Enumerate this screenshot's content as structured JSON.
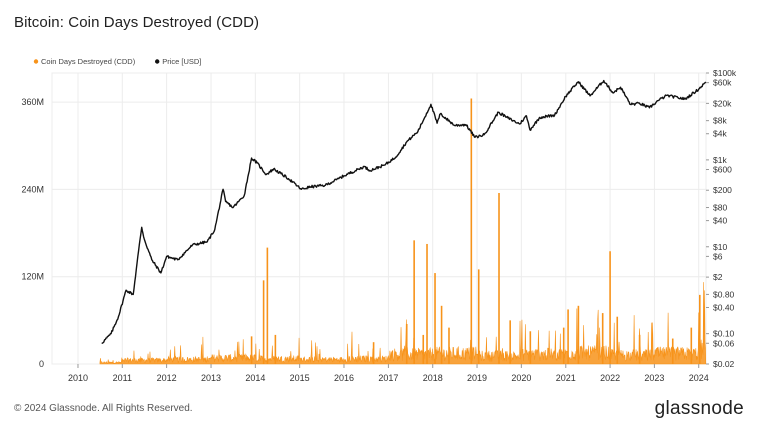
{
  "title": "Bitcoin: Coin Days Destroyed (CDD)",
  "footer": {
    "copyright": "© 2024 Glassnode. All Rights Reserved.",
    "brand": "glassnode"
  },
  "colors": {
    "cdd": "#f7931a",
    "price": "#111111",
    "grid": "#ececec"
  },
  "chart_data": {
    "type": "area",
    "title": "Bitcoin: Coin Days Destroyed (CDD)",
    "legend": {
      "placement": "top-left",
      "items": [
        {
          "label": "Coin Days Destroyed (CDD)",
          "color": "#f7931a",
          "marker": "dot"
        },
        {
          "label": "Price [USD]",
          "color": "#111111",
          "marker": "dot"
        }
      ]
    },
    "x_axis": {
      "type": "time",
      "range": [
        "2009-06-01",
        "2024-03-01"
      ],
      "tick_labels": [
        "2010",
        "2011",
        "2012",
        "2013",
        "2014",
        "2015",
        "2016",
        "2017",
        "2018",
        "2019",
        "2020",
        "2021",
        "2022",
        "2023",
        "2024"
      ]
    },
    "y_axis_left": {
      "label": "",
      "range": [
        0,
        400000000
      ],
      "ticks": [
        0,
        120000000,
        240000000,
        360000000
      ],
      "tick_labels": [
        "0",
        "120M",
        "240M",
        "360M"
      ]
    },
    "y_axis_right": {
      "label": "",
      "scale": "log",
      "range": [
        0.02,
        100000
      ],
      "ticks": [
        0.02,
        0.06,
        0.1,
        0.4,
        0.8,
        2,
        6,
        10,
        40,
        80,
        200,
        600,
        1000,
        4000,
        8000,
        20000,
        60000,
        100000
      ],
      "tick_labels": [
        "$0.02",
        "$0.06",
        "$0.10",
        "$0.40",
        "$0.80",
        "$2",
        "$6",
        "$10",
        "$40",
        "$80",
        "$200",
        "$600",
        "$1k",
        "$4k",
        "$8k",
        "$20k",
        "$60k",
        "$100k"
      ]
    },
    "grid": true,
    "series": [
      {
        "name": "Price [USD]",
        "axis": "right",
        "style": "line",
        "points": [
          [
            "2010-07-15",
            0.06
          ],
          [
            "2010-10-01",
            0.1
          ],
          [
            "2010-12-01",
            0.25
          ],
          [
            "2011-02-01",
            1.0
          ],
          [
            "2011-04-01",
            0.8
          ],
          [
            "2011-05-15",
            8
          ],
          [
            "2011-06-10",
            28
          ],
          [
            "2011-07-01",
            15
          ],
          [
            "2011-09-01",
            5
          ],
          [
            "2011-11-15",
            2.5
          ],
          [
            "2012-01-01",
            6
          ],
          [
            "2012-04-01",
            5
          ],
          [
            "2012-08-01",
            11
          ],
          [
            "2012-12-01",
            13
          ],
          [
            "2013-02-01",
            25
          ],
          [
            "2013-04-10",
            210
          ],
          [
            "2013-05-01",
            110
          ],
          [
            "2013-07-01",
            80
          ],
          [
            "2013-10-01",
            150
          ],
          [
            "2013-12-01",
            1100
          ],
          [
            "2014-01-15",
            850
          ],
          [
            "2014-04-01",
            460
          ],
          [
            "2014-06-01",
            620
          ],
          [
            "2014-10-01",
            370
          ],
          [
            "2015-01-15",
            210
          ],
          [
            "2015-04-01",
            240
          ],
          [
            "2015-08-01",
            260
          ],
          [
            "2015-11-01",
            350
          ],
          [
            "2016-01-01",
            430
          ],
          [
            "2016-06-15",
            700
          ],
          [
            "2016-08-01",
            570
          ],
          [
            "2016-12-01",
            760
          ],
          [
            "2017-03-01",
            1150
          ],
          [
            "2017-06-01",
            2600
          ],
          [
            "2017-09-01",
            4500
          ],
          [
            "2017-12-17",
            19000
          ],
          [
            "2018-02-06",
            7000
          ],
          [
            "2018-03-05",
            11500
          ],
          [
            "2018-06-30",
            6200
          ],
          [
            "2018-10-01",
            6500
          ],
          [
            "2018-12-15",
            3300
          ],
          [
            "2019-03-01",
            3800
          ],
          [
            "2019-06-26",
            12500
          ],
          [
            "2019-09-01",
            9600
          ],
          [
            "2019-12-17",
            6700
          ],
          [
            "2020-02-12",
            10300
          ],
          [
            "2020-03-12",
            4900
          ],
          [
            "2020-06-01",
            9500
          ],
          [
            "2020-10-01",
            10700
          ],
          [
            "2020-12-31",
            29000
          ],
          [
            "2021-04-14",
            63000
          ],
          [
            "2021-07-20",
            29800
          ],
          [
            "2021-11-10",
            67000
          ],
          [
            "2022-01-24",
            35000
          ],
          [
            "2022-03-28",
            47000
          ],
          [
            "2022-06-18",
            18900
          ],
          [
            "2022-09-01",
            20000
          ],
          [
            "2022-11-21",
            15800
          ],
          [
            "2023-01-31",
            23100
          ],
          [
            "2023-04-14",
            30400
          ],
          [
            "2023-09-11",
            25100
          ],
          [
            "2023-12-31",
            42300
          ],
          [
            "2024-02-28",
            62000
          ]
        ]
      },
      {
        "name": "Coin Days Destroyed (CDD)",
        "axis": "left",
        "style": "column-area",
        "baseline_by_year": {
          "2010": 2000000,
          "2011": 5000000,
          "2012": 6000000,
          "2013": 8000000,
          "2014": 7000000,
          "2015": 6000000,
          "2016": 7000000,
          "2017": 13000000,
          "2018": 14000000,
          "2019": 11000000,
          "2020": 13000000,
          "2021": 15000000,
          "2022": 12000000,
          "2023": 14000000,
          "2024": 20000000
        },
        "spikes": [
          [
            "2013-12-01",
            38000000
          ],
          [
            "2014-03-10",
            115000000
          ],
          [
            "2014-04-10",
            160000000
          ],
          [
            "2014-06-15",
            40000000
          ],
          [
            "2016-09-01",
            30000000
          ],
          [
            "2017-06-01",
            55000000
          ],
          [
            "2017-08-01",
            170000000
          ],
          [
            "2017-10-15",
            40000000
          ],
          [
            "2017-11-15",
            165000000
          ],
          [
            "2018-01-20",
            125000000
          ],
          [
            "2018-03-15",
            80000000
          ],
          [
            "2018-05-15",
            50000000
          ],
          [
            "2018-11-15",
            365000000
          ],
          [
            "2019-01-15",
            130000000
          ],
          [
            "2019-07-01",
            235000000
          ],
          [
            "2019-10-01",
            60000000
          ],
          [
            "2020-03-15",
            45000000
          ],
          [
            "2020-12-15",
            50000000
          ],
          [
            "2021-01-20",
            75000000
          ],
          [
            "2021-04-15",
            80000000
          ],
          [
            "2021-11-01",
            70000000
          ],
          [
            "2022-01-01",
            155000000
          ],
          [
            "2022-03-01",
            65000000
          ],
          [
            "2022-09-01",
            40000000
          ],
          [
            "2023-06-01",
            35000000
          ],
          [
            "2023-11-01",
            50000000
          ],
          [
            "2024-01-10",
            95000000
          ]
        ]
      }
    ]
  }
}
